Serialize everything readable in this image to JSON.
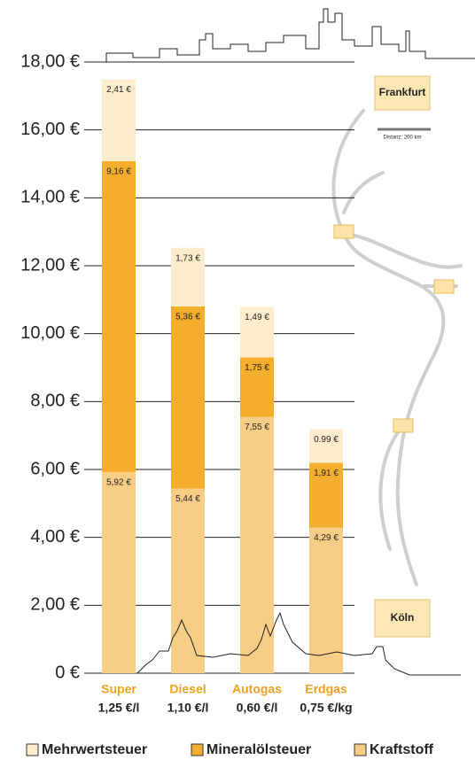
{
  "chart_data": {
    "type": "stacked-bar",
    "categories": [
      "Super",
      "Diesel",
      "Autogas",
      "Erdgas"
    ],
    "category_prices": [
      "1,25 €/l",
      "1,10 €/l",
      "0,60 €/l",
      "0,75 €/kg"
    ],
    "series": [
      {
        "name": "Kraftstoff",
        "color": "#f8cd85",
        "values": [
          5.92,
          5.44,
          7.55,
          4.29
        ],
        "value_labels": [
          "5,92 €",
          "5,44 €",
          "7,55 €",
          "4,29 €"
        ]
      },
      {
        "name": "Mineralölsteuer",
        "color": "#f4ad2c",
        "values": [
          9.16,
          5.36,
          1.75,
          1.91
        ],
        "value_labels": [
          "9,16 €",
          "5,36 €",
          "1,75 €",
          "1,91 €"
        ]
      },
      {
        "name": "Mehrwertsteuer",
        "color": "#fdedcc",
        "values": [
          2.41,
          1.73,
          1.49,
          0.99
        ],
        "value_labels": [
          "2,41 €",
          "1,73 €",
          "1,49 €",
          "0.99 €"
        ]
      }
    ],
    "ylim": [
      0,
      18
    ],
    "yticks": [
      {
        "value": 0,
        "label": "0 €"
      },
      {
        "value": 2,
        "label": "2,00 €"
      },
      {
        "value": 4,
        "label": "4,00 €"
      },
      {
        "value": 6,
        "label": "6,00 €"
      },
      {
        "value": 8,
        "label": "8,00 €"
      },
      {
        "value": 10,
        "label": "10,00 €"
      },
      {
        "value": 12,
        "label": "12,00 €"
      },
      {
        "value": 14,
        "label": "14,00 €"
      },
      {
        "value": 16,
        "label": "16,00 €"
      },
      {
        "value": 18,
        "label": "18,00 €"
      }
    ],
    "grid": true,
    "annotations": [
      "Frankfurt",
      "Distanz: 200 km",
      "Köln"
    ]
  }
}
